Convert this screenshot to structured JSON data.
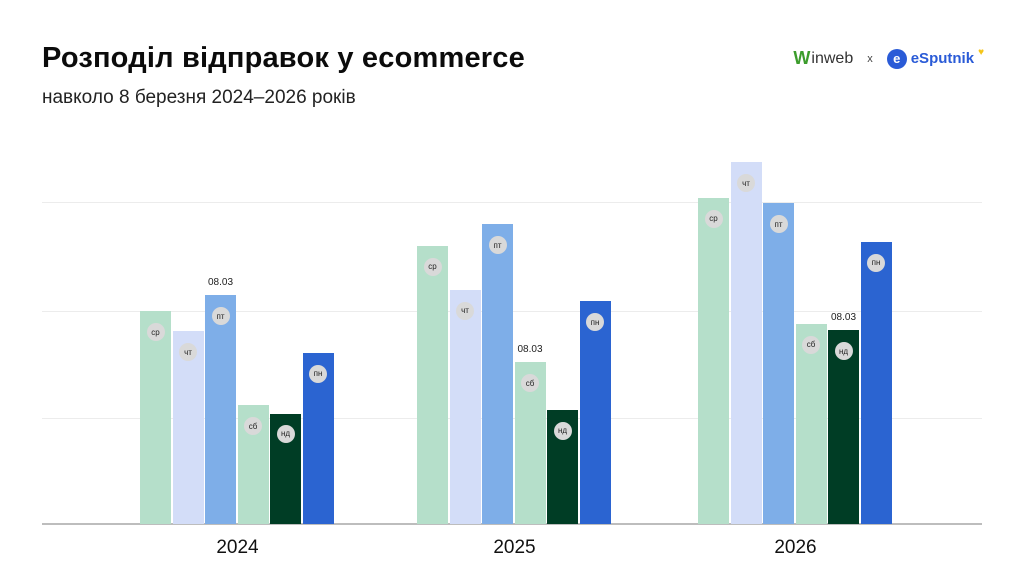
{
  "header": {
    "title": "Розподіл відправок у ecommerce",
    "subtitle": "навколо 8 березня 2024–2026 років"
  },
  "logos": {
    "left": {
      "mark": "W",
      "text": "inweb"
    },
    "separator": "x",
    "right": {
      "mark": "e",
      "text": "eSputnik",
      "accent": "♥"
    }
  },
  "colors": {
    "ср": "#b5dfca",
    "чт": "#d3ddf8",
    "пт": "#7eaee8",
    "сб": "#b5dfca",
    "нд": "#003d25",
    "пн": "#2b64d1",
    "grid": "#ececec",
    "badge": "#d9d9d9"
  },
  "chart_data": {
    "type": "bar",
    "title": "Розподіл відправок у ecommerce",
    "subtitle": "навколо 8 березня 2024–2026 років",
    "xlabel": "",
    "ylabel": "",
    "categories": [
      "2024",
      "2025",
      "2026"
    ],
    "series": [
      {
        "name": "ср",
        "values": [
          199,
          260,
          305
        ]
      },
      {
        "name": "чт",
        "values": [
          180,
          219,
          338
        ]
      },
      {
        "name": "пт",
        "values": [
          214,
          280,
          300
        ]
      },
      {
        "name": "сб",
        "values": [
          111,
          151,
          187
        ]
      },
      {
        "name": "нд",
        "values": [
          103,
          107,
          181
        ]
      },
      {
        "name": "пн",
        "values": [
          160,
          208,
          264
        ]
      }
    ],
    "annotations": [
      {
        "year": "2024",
        "day": "пт",
        "text": "08.03"
      },
      {
        "year": "2025",
        "day": "сб",
        "text": "08.03"
      },
      {
        "year": "2026",
        "day": "нд",
        "text": "08.03"
      }
    ],
    "ylim": [
      0,
      350
    ],
    "yticks_unlabeled": [
      100,
      200,
      300
    ],
    "grid": true,
    "legend": "none (day labels on bars)"
  }
}
